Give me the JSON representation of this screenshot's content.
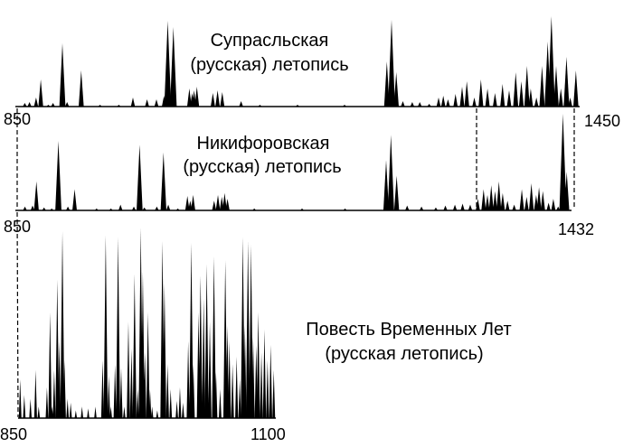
{
  "chart_data": [
    {
      "type": "area",
      "title_lines": [
        "Супрасльская",
        "(русская) летопись"
      ],
      "xlim": [
        850,
        1450
      ],
      "tick_labels": [
        "850",
        "1450"
      ],
      "peaks": [
        [
          860,
          0.04
        ],
        [
          865,
          0.05
        ],
        [
          872,
          0.1
        ],
        [
          877,
          0.3
        ],
        [
          885,
          0.02
        ],
        [
          890,
          0.04
        ],
        [
          900,
          0.7
        ],
        [
          905,
          0.05
        ],
        [
          920,
          0.4
        ],
        [
          940,
          0.02
        ],
        [
          960,
          0.02
        ],
        [
          975,
          0.1
        ],
        [
          990,
          0.08
        ],
        [
          1000,
          0.08
        ],
        [
          1008,
          0.12
        ],
        [
          1012,
          0.95
        ],
        [
          1018,
          0.88
        ],
        [
          1035,
          0.2
        ],
        [
          1038,
          0.15
        ],
        [
          1040,
          0.18
        ],
        [
          1043,
          0.22
        ],
        [
          1060,
          0.15
        ],
        [
          1065,
          0.18
        ],
        [
          1070,
          0.16
        ],
        [
          1090,
          0.06
        ],
        [
          1110,
          0.02
        ],
        [
          1150,
          0.02
        ],
        [
          1200,
          0.02
        ],
        [
          1245,
          0.5
        ],
        [
          1250,
          0.96
        ],
        [
          1255,
          0.38
        ],
        [
          1262,
          0.06
        ],
        [
          1272,
          0.05
        ],
        [
          1280,
          0.05
        ],
        [
          1290,
          0.03
        ],
        [
          1300,
          0.1
        ],
        [
          1305,
          0.12
        ],
        [
          1310,
          0.08
        ],
        [
          1318,
          0.14
        ],
        [
          1325,
          0.22
        ],
        [
          1330,
          0.28
        ],
        [
          1338,
          0.1
        ],
        [
          1345,
          0.3
        ],
        [
          1352,
          0.2
        ],
        [
          1360,
          0.15
        ],
        [
          1368,
          0.25
        ],
        [
          1375,
          0.18
        ],
        [
          1382,
          0.38
        ],
        [
          1388,
          0.28
        ],
        [
          1394,
          0.45
        ],
        [
          1398,
          0.2
        ],
        [
          1404,
          0.1
        ],
        [
          1410,
          0.45
        ],
        [
          1416,
          0.72
        ],
        [
          1420,
          1.0
        ],
        [
          1425,
          0.45
        ],
        [
          1430,
          0.2
        ],
        [
          1436,
          0.55
        ],
        [
          1440,
          0.1
        ],
        [
          1446,
          0.4
        ]
      ]
    },
    {
      "type": "area",
      "title_lines": [
        "Никифоровская",
        "(русская) летопись"
      ],
      "xlim": [
        850,
        1432
      ],
      "tick_labels": [
        "850",
        "1432"
      ],
      "peaks": [
        [
          860,
          0.04
        ],
        [
          868,
          0.05
        ],
        [
          872,
          0.3
        ],
        [
          880,
          0.03
        ],
        [
          888,
          0.02
        ],
        [
          895,
          0.72
        ],
        [
          905,
          0.04
        ],
        [
          912,
          0.22
        ],
        [
          935,
          0.02
        ],
        [
          950,
          0.02
        ],
        [
          960,
          0.06
        ],
        [
          974,
          0.04
        ],
        [
          980,
          0.68
        ],
        [
          985,
          0.03
        ],
        [
          998,
          0.04
        ],
        [
          1005,
          0.6
        ],
        [
          1010,
          0.06
        ],
        [
          1020,
          0.02
        ],
        [
          1030,
          0.15
        ],
        [
          1033,
          0.1
        ],
        [
          1036,
          0.16
        ],
        [
          1058,
          0.1
        ],
        [
          1062,
          0.16
        ],
        [
          1066,
          0.14
        ],
        [
          1069,
          0.18
        ],
        [
          1072,
          0.12
        ],
        [
          1100,
          0.02
        ],
        [
          1150,
          0.02
        ],
        [
          1195,
          0.02
        ],
        [
          1238,
          0.52
        ],
        [
          1243,
          0.78
        ],
        [
          1249,
          0.36
        ],
        [
          1260,
          0.05
        ],
        [
          1275,
          0.04
        ],
        [
          1290,
          0.03
        ],
        [
          1300,
          0.05
        ],
        [
          1310,
          0.06
        ],
        [
          1318,
          0.07
        ],
        [
          1326,
          0.06
        ],
        [
          1334,
          0.12
        ],
        [
          1340,
          0.22
        ],
        [
          1344,
          0.16
        ],
        [
          1348,
          0.26
        ],
        [
          1352,
          0.2
        ],
        [
          1356,
          0.3
        ],
        [
          1360,
          0.18
        ],
        [
          1365,
          0.1
        ],
        [
          1372,
          0.06
        ],
        [
          1380,
          0.22
        ],
        [
          1385,
          0.14
        ],
        [
          1390,
          0.28
        ],
        [
          1395,
          0.16
        ],
        [
          1398,
          0.24
        ],
        [
          1402,
          0.2
        ],
        [
          1408,
          0.08
        ],
        [
          1413,
          0.12
        ],
        [
          1418,
          0.04
        ],
        [
          1423,
          1.0
        ],
        [
          1427,
          0.4
        ]
      ]
    },
    {
      "type": "area",
      "title_lines": [
        "Повесть Временных Лет",
        "(русская летопись)"
      ],
      "xlim": [
        850,
        1100
      ],
      "tick_labels": [
        "850",
        "1100"
      ],
      "peaks": [
        [
          852,
          0.2
        ],
        [
          856,
          0.12
        ],
        [
          862,
          0.1
        ],
        [
          867,
          0.25
        ],
        [
          870,
          0.06
        ],
        [
          878,
          0.16
        ],
        [
          881,
          0.55
        ],
        [
          883,
          0.06
        ],
        [
          885,
          0.25
        ],
        [
          888,
          0.72
        ],
        [
          890,
          0.4
        ],
        [
          893,
          0.97
        ],
        [
          895,
          0.3
        ],
        [
          898,
          0.1
        ],
        [
          901,
          0.08
        ],
        [
          906,
          0.04
        ],
        [
          912,
          0.06
        ],
        [
          918,
          0.05
        ],
        [
          925,
          0.06
        ],
        [
          932,
          0.3
        ],
        [
          935,
          0.95
        ],
        [
          938,
          0.22
        ],
        [
          940,
          0.06
        ],
        [
          944,
          0.28
        ],
        [
          947,
          0.94
        ],
        [
          950,
          0.26
        ],
        [
          953,
          0.06
        ],
        [
          957,
          0.5
        ],
        [
          960,
          0.36
        ],
        [
          963,
          0.75
        ],
        [
          966,
          0.15
        ],
        [
          969,
          0.99
        ],
        [
          971,
          0.76
        ],
        [
          973,
          0.34
        ],
        [
          976,
          0.55
        ],
        [
          978,
          0.15
        ],
        [
          980,
          0.06
        ],
        [
          985,
          0.04
        ],
        [
          990,
          0.92
        ],
        [
          992,
          0.7
        ],
        [
          995,
          0.28
        ],
        [
          998,
          0.15
        ],
        [
          1004,
          0.09
        ],
        [
          1007,
          0.16
        ],
        [
          1010,
          0.08
        ],
        [
          1015,
          0.4
        ],
        [
          1018,
          0.91
        ],
        [
          1020,
          0.28
        ],
        [
          1025,
          0.55
        ],
        [
          1027,
          0.74
        ],
        [
          1030,
          0.62
        ],
        [
          1033,
          0.8
        ],
        [
          1036,
          0.5
        ],
        [
          1040,
          0.84
        ],
        [
          1042,
          0.24
        ],
        [
          1046,
          0.15
        ],
        [
          1051,
          0.82
        ],
        [
          1053,
          0.48
        ],
        [
          1055,
          0.4
        ],
        [
          1058,
          0.28
        ],
        [
          1062,
          0.32
        ],
        [
          1065,
          0.2
        ],
        [
          1068,
          0.94
        ],
        [
          1070,
          0.48
        ],
        [
          1073,
          0.92
        ],
        [
          1076,
          0.9
        ],
        [
          1078,
          0.42
        ],
        [
          1081,
          0.38
        ],
        [
          1083,
          0.55
        ],
        [
          1086,
          0.34
        ],
        [
          1089,
          0.46
        ],
        [
          1092,
          0.3
        ],
        [
          1095,
          0.38
        ],
        [
          1098,
          0.25
        ]
      ]
    }
  ]
}
